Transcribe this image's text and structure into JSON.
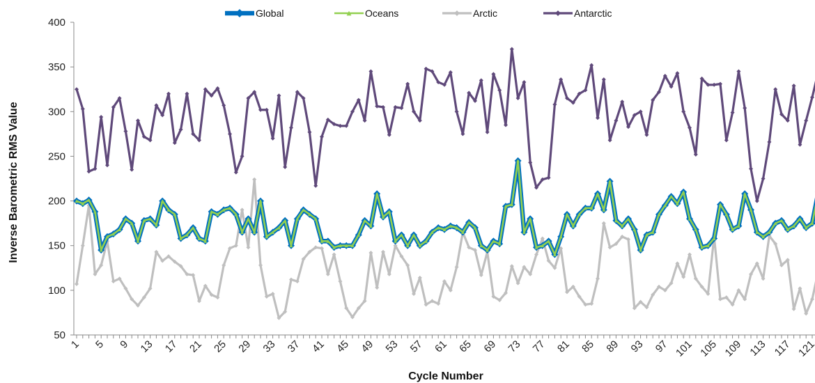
{
  "chart_data": {
    "type": "line",
    "xlabel": "Cycle Number",
    "ylabel": "Inverse Barometric RMS Value",
    "ylim": [
      50,
      400
    ],
    "yticks": [
      50,
      100,
      150,
      200,
      250,
      300,
      350,
      400
    ],
    "xlim": [
      1,
      122
    ],
    "xticks": [
      1,
      5,
      9,
      13,
      17,
      21,
      25,
      29,
      33,
      37,
      41,
      45,
      49,
      53,
      57,
      61,
      65,
      69,
      73,
      77,
      81,
      85,
      89,
      93,
      97,
      101,
      105,
      109,
      113,
      117,
      121
    ],
    "grid": false,
    "legend_position": "top",
    "x": [
      1,
      2,
      3,
      4,
      5,
      6,
      7,
      8,
      9,
      10,
      11,
      12,
      13,
      14,
      15,
      16,
      17,
      18,
      19,
      20,
      21,
      22,
      23,
      24,
      25,
      26,
      27,
      28,
      29,
      30,
      31,
      32,
      33,
      34,
      35,
      36,
      37,
      38,
      39,
      40,
      41,
      42,
      43,
      44,
      45,
      46,
      47,
      48,
      49,
      50,
      51,
      52,
      53,
      54,
      55,
      56,
      57,
      58,
      59,
      60,
      61,
      62,
      63,
      64,
      65,
      66,
      67,
      68,
      69,
      70,
      71,
      72,
      73,
      74,
      75,
      76,
      77,
      78,
      79,
      80,
      81,
      82,
      83,
      84,
      85,
      86,
      87,
      88,
      89,
      90,
      91,
      92,
      93,
      94,
      95,
      96,
      97,
      98,
      99,
      100,
      101,
      102,
      103,
      104,
      105,
      106,
      107,
      108,
      109,
      110,
      111,
      112,
      113,
      114,
      115,
      116,
      117,
      118,
      119,
      120,
      121,
      122
    ],
    "series": [
      {
        "name": "Global",
        "color": "#0070C0",
        "values": [
          200,
          197,
          201,
          188,
          145,
          160,
          163,
          168,
          180,
          175,
          155,
          178,
          180,
          173,
          200,
          190,
          185,
          158,
          162,
          170,
          158,
          155,
          188,
          185,
          190,
          192,
          185,
          165,
          180,
          165,
          200,
          160,
          165,
          170,
          178,
          150,
          180,
          190,
          185,
          180,
          155,
          155,
          148,
          150,
          150,
          150,
          162,
          178,
          172,
          208,
          182,
          188,
          155,
          162,
          150,
          162,
          150,
          155,
          165,
          170,
          168,
          172,
          170,
          165,
          176,
          170,
          150,
          145,
          155,
          152,
          194,
          196,
          245,
          165,
          180,
          148,
          150,
          155,
          140,
          160,
          185,
          172,
          185,
          192,
          192,
          208,
          190,
          222,
          178,
          172,
          180,
          168,
          145,
          162,
          165,
          185,
          195,
          205,
          197,
          210,
          180,
          168,
          148,
          150,
          158,
          196,
          185,
          168,
          172,
          208,
          190,
          165,
          160,
          165,
          175,
          178,
          168,
          172,
          180,
          170,
          175,
          210
        ]
      },
      {
        "name": "Oceans",
        "color": "#92D050",
        "values": [
          200,
          197,
          201,
          188,
          145,
          160,
          163,
          168,
          180,
          175,
          155,
          178,
          180,
          173,
          200,
          190,
          185,
          158,
          162,
          170,
          158,
          155,
          188,
          185,
          190,
          192,
          185,
          165,
          180,
          165,
          200,
          160,
          165,
          170,
          178,
          150,
          180,
          190,
          185,
          180,
          155,
          155,
          148,
          150,
          150,
          150,
          162,
          178,
          172,
          208,
          182,
          188,
          155,
          162,
          150,
          162,
          150,
          155,
          165,
          170,
          168,
          172,
          170,
          165,
          176,
          170,
          150,
          145,
          155,
          152,
          194,
          196,
          245,
          165,
          180,
          148,
          150,
          155,
          140,
          160,
          185,
          172,
          185,
          192,
          192,
          208,
          190,
          222,
          178,
          172,
          180,
          168,
          145,
          162,
          165,
          185,
          195,
          205,
          197,
          210,
          180,
          168,
          148,
          150,
          158,
          196,
          185,
          168,
          172,
          208,
          190,
          165,
          160,
          165,
          175,
          178,
          168,
          172,
          180,
          170,
          175,
          210
        ]
      },
      {
        "name": "Arctic",
        "color": "#BFBFBF",
        "values": [
          107,
          150,
          195,
          118,
          128,
          155,
          110,
          113,
          102,
          90,
          83,
          92,
          102,
          143,
          133,
          138,
          132,
          127,
          118,
          117,
          88,
          105,
          95,
          92,
          128,
          147,
          150,
          190,
          148,
          224,
          128,
          93,
          96,
          69,
          76,
          112,
          110,
          135,
          143,
          148,
          147,
          118,
          140,
          110,
          80,
          70,
          80,
          88,
          142,
          103,
          143,
          118,
          150,
          138,
          128,
          96,
          114,
          84,
          88,
          85,
          110,
          100,
          126,
          165,
          148,
          145,
          117,
          143,
          93,
          89,
          97,
          127,
          108,
          126,
          118,
          140,
          158,
          133,
          125,
          147,
          98,
          104,
          93,
          84,
          85,
          113,
          175,
          148,
          152,
          160,
          157,
          80,
          87,
          81,
          95,
          104,
          100,
          108,
          130,
          115,
          140,
          113,
          104,
          96,
          160,
          90,
          92,
          84,
          100,
          90,
          118,
          130,
          113,
          161,
          152,
          128,
          134,
          79,
          102,
          74,
          90,
          122
        ]
      },
      {
        "name": "Antarctic",
        "color": "#5F497A",
        "values": [
          325,
          303,
          233,
          236,
          294,
          240,
          305,
          315,
          278,
          235,
          290,
          272,
          268,
          307,
          296,
          320,
          265,
          280,
          320,
          275,
          268,
          325,
          318,
          326,
          307,
          275,
          232,
          250,
          315,
          322,
          302,
          302,
          270,
          318,
          238,
          282,
          322,
          315,
          277,
          217,
          272,
          291,
          286,
          284,
          284,
          300,
          313,
          290,
          345,
          306,
          305,
          274,
          305,
          304,
          331,
          300,
          290,
          348,
          345,
          333,
          330,
          344,
          300,
          275,
          321,
          312,
          335,
          277,
          342,
          324,
          285,
          370,
          315,
          333,
          243,
          215,
          224,
          226,
          308,
          336,
          315,
          310,
          320,
          324,
          352,
          293,
          336,
          268,
          290,
          311,
          283,
          296,
          300,
          274,
          313,
          322,
          340,
          328,
          343,
          300,
          282,
          252,
          337,
          330,
          330,
          331,
          268,
          299,
          345,
          304,
          236,
          200,
          225,
          266,
          325,
          297,
          290,
          329,
          263,
          290,
          316,
          345
        ]
      }
    ]
  }
}
